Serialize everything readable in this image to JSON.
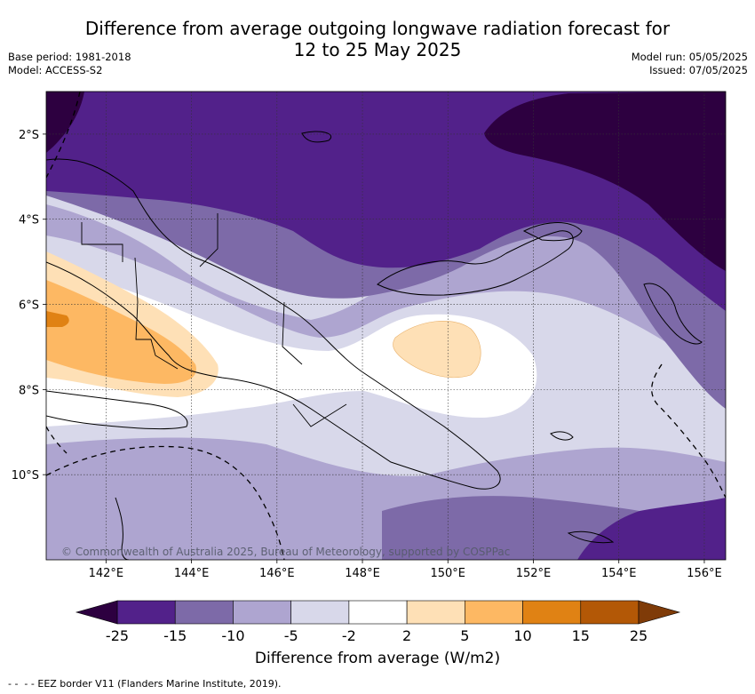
{
  "title": {
    "line1": "Difference from average outgoing longwave radiation forecast for",
    "line2": "12 to 25 May 2025"
  },
  "meta_left": {
    "base_period": "Base period: 1981-2018",
    "model": "Model: ACCESS-S2"
  },
  "meta_right": {
    "model_run": "Model run: 05/05/2025",
    "issued": "Issued: 07/05/2025"
  },
  "map": {
    "lon_range": [
      140.6,
      156.5
    ],
    "lat_range": [
      -12.0,
      -1.0
    ],
    "x_ticks": [
      "142°E",
      "144°E",
      "146°E",
      "148°E",
      "150°E",
      "152°E",
      "154°E",
      "156°E"
    ],
    "x_tick_values": [
      142,
      144,
      146,
      148,
      150,
      152,
      154,
      156
    ],
    "y_ticks": [
      "2°S",
      "4°S",
      "6°S",
      "8°S",
      "10°S"
    ],
    "y_tick_values": [
      -2,
      -4,
      -6,
      -8,
      -10
    ],
    "gridlines": true,
    "credit": "© Commonwealth of Australia 2025, Bureau of Meteorology, supported by COSPPac"
  },
  "colorbar": {
    "ticks": [
      "-25",
      "-15",
      "-10",
      "-5",
      "-2",
      "2",
      "5",
      "10",
      "15",
      "25"
    ],
    "colors": [
      "#52218a",
      "#7d6aa8",
      "#aea5d0",
      "#d8d8ea",
      "#ffffff",
      "#fee0b6",
      "#fdb863",
      "#e08214",
      "#b35806"
    ],
    "under_color": "#2d0040",
    "over_color": "#7f3b08",
    "label": "Difference from average (W/m2)"
  },
  "legend": {
    "eez_label": "EEZ border V11 (Flanders Marine Institute, 2019)."
  }
}
